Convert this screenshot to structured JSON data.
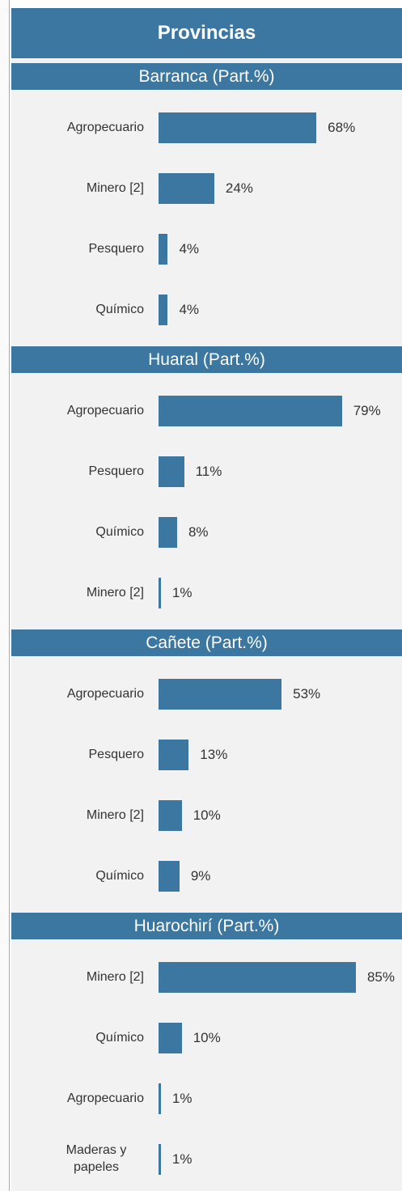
{
  "header": {
    "title": "Provincias"
  },
  "chart_data": [
    {
      "type": "bar",
      "title": "Barranca (Part.%)",
      "categories": [
        "Agropecuario",
        "Minero [2]",
        "Pesquero",
        "Químico"
      ],
      "values": [
        68,
        24,
        4,
        4
      ],
      "value_labels": [
        "68%",
        "24%",
        "4%",
        "4%"
      ],
      "color": "#3b77a0"
    },
    {
      "type": "bar",
      "title": "Huaral (Part.%)",
      "categories": [
        "Agropecuario",
        "Pesquero",
        "Químico",
        "Minero [2]"
      ],
      "values": [
        79,
        11,
        8,
        1
      ],
      "value_labels": [
        "79%",
        "11%",
        "8%",
        "1%"
      ],
      "color": "#3b77a0"
    },
    {
      "type": "bar",
      "title": "Cañete (Part.%)",
      "categories": [
        "Agropecuario",
        "Pesquero",
        "Minero [2]",
        "Químico"
      ],
      "values": [
        53,
        13,
        10,
        9
      ],
      "value_labels": [
        "53%",
        "13%",
        "10%",
        "9%"
      ],
      "color": "#3b77a0"
    },
    {
      "type": "bar",
      "title": "Huarochirí (Part.%)",
      "categories": [
        "Minero [2]",
        "Químico",
        "Agropecuario",
        "Maderas y papeles"
      ],
      "values": [
        85,
        10,
        1,
        1
      ],
      "value_labels": [
        "85%",
        "10%",
        "1%",
        "1%"
      ],
      "color": "#3b77a0"
    }
  ]
}
